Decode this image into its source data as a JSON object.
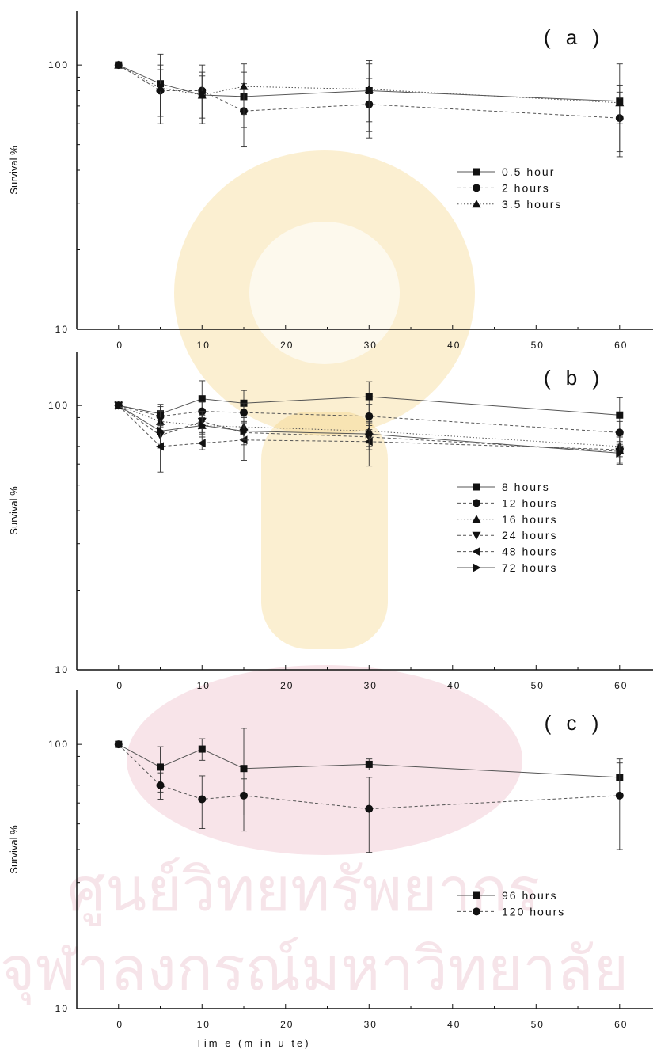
{
  "chart_data": [
    {
      "type": "line",
      "panel_label": "( a )",
      "ylabel": "Survival %",
      "xlabel": "",
      "yscale": "log",
      "ylim": [
        10,
        160
      ],
      "xlim": [
        -5,
        64
      ],
      "xticks": [
        0,
        10,
        20,
        30,
        40,
        50,
        60
      ],
      "yticks": [
        10,
        100
      ],
      "x": [
        0,
        5,
        10,
        15,
        30,
        60
      ],
      "legend_position": "middle-right",
      "series": [
        {
          "name": "0.5 hour",
          "marker": "square",
          "line": "solid",
          "values": [
            100,
            85,
            77,
            76,
            80,
            73
          ],
          "errors": [
            0,
            25,
            17,
            18,
            24,
            28
          ]
        },
        {
          "name": "2 hours",
          "marker": "circle",
          "line": "dashed",
          "values": [
            100,
            80,
            80,
            67,
            71,
            63
          ],
          "errors": [
            0,
            16,
            20,
            18,
            18,
            16
          ]
        },
        {
          "name": "3.5 hours",
          "marker": "triangle-up",
          "line": "dotted",
          "values": [
            100,
            82,
            77,
            83,
            81,
            72
          ],
          "errors": [
            0,
            18,
            14,
            18,
            20,
            12
          ]
        }
      ]
    },
    {
      "type": "line",
      "panel_label": "( b )",
      "ylabel": "Survival %",
      "xlabel": "",
      "yscale": "log",
      "ylim": [
        10,
        160
      ],
      "xlim": [
        -5,
        64
      ],
      "xticks": [
        0,
        10,
        20,
        30,
        40,
        50,
        60
      ],
      "yticks": [
        10,
        100
      ],
      "x": [
        0,
        5,
        10,
        15,
        30,
        60
      ],
      "legend_position": "middle-right",
      "series": [
        {
          "name": "8 hours",
          "marker": "square",
          "line": "solid",
          "values": [
            100,
            93,
            106,
            102,
            108,
            92
          ],
          "errors": [
            0,
            8,
            18,
            12,
            15,
            15
          ]
        },
        {
          "name": "12 hours",
          "marker": "circle",
          "line": "dashed",
          "values": [
            100,
            91,
            95,
            94,
            91,
            79
          ],
          "errors": [
            0,
            8,
            8,
            8,
            10,
            8
          ]
        },
        {
          "name": "16 hours",
          "marker": "triangle-up",
          "line": "dotted",
          "values": [
            100,
            87,
            84,
            83,
            80,
            70
          ],
          "errors": [
            0,
            8,
            8,
            8,
            8,
            6
          ]
        },
        {
          "name": "24 hours",
          "marker": "triangle-down",
          "line": "dashed",
          "values": [
            100,
            77,
            87,
            79,
            76,
            67
          ],
          "errors": [
            0,
            8,
            8,
            8,
            8,
            6
          ]
        },
        {
          "name": "48 hours",
          "marker": "triangle-left",
          "line": "dashed",
          "values": [
            100,
            70,
            72,
            74,
            73,
            68
          ],
          "errors": [
            0,
            14,
            4,
            12,
            14,
            8
          ]
        },
        {
          "name": "72 hours",
          "marker": "triangle-right",
          "line": "solid",
          "values": [
            100,
            80,
            84,
            80,
            78,
            66
          ],
          "errors": [
            0,
            8,
            6,
            6,
            8,
            6
          ]
        }
      ]
    },
    {
      "type": "line",
      "panel_label": "( c )",
      "ylabel": "Survival %",
      "xlabel": "Tim e  (m in u te)",
      "yscale": "log",
      "ylim": [
        10,
        160
      ],
      "xlim": [
        -5,
        64
      ],
      "xticks": [
        0,
        10,
        20,
        30,
        40,
        50,
        60
      ],
      "yticks": [
        10,
        100
      ],
      "x": [
        0,
        5,
        10,
        15,
        30,
        60
      ],
      "legend_position": "lower-right",
      "series": [
        {
          "name": "96 hours",
          "marker": "square",
          "line": "solid",
          "values": [
            100,
            82,
            96,
            81,
            84,
            75
          ],
          "errors": [
            0,
            16,
            9,
            34,
            4,
            10
          ]
        },
        {
          "name": "120 hours",
          "marker": "circle",
          "line": "dashed",
          "values": [
            100,
            70,
            62,
            64,
            57,
            64
          ],
          "errors": [
            0,
            8,
            14,
            10,
            18,
            24
          ]
        }
      ]
    }
  ],
  "watermark": {
    "line1": "ศูนย์วิทยทรัพยากร",
    "line2": "จุฬาลงกรณ์มหาวิทยาลัย"
  }
}
